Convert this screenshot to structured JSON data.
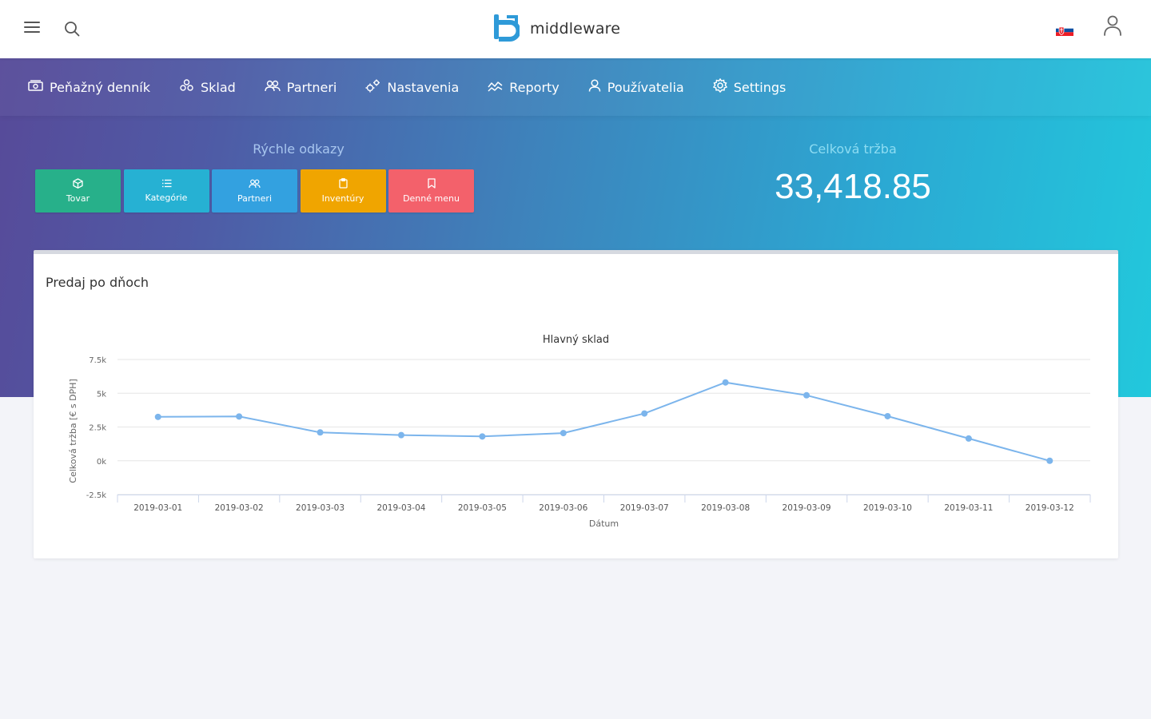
{
  "header": {
    "brand_name": "middleware",
    "menu_icon": "hamburger-icon",
    "search_icon": "search-icon",
    "flag_icon": "slovakia-flag-icon",
    "user_icon": "user-icon"
  },
  "nav": {
    "items": [
      {
        "label": "Peňažný denník",
        "icon": "cash-icon"
      },
      {
        "label": "Sklad",
        "icon": "boxes-icon"
      },
      {
        "label": "Partneri",
        "icon": "users-icon"
      },
      {
        "label": "Nastavenia",
        "icon": "gears-icon"
      },
      {
        "label": "Reporty",
        "icon": "chart-icon"
      },
      {
        "label": "Používatelia",
        "icon": "user-icon"
      },
      {
        "label": "Settings",
        "icon": "gear-icon"
      }
    ]
  },
  "quick_links": {
    "title": "Rýchle odkazy",
    "buttons": [
      {
        "label": "Tovar",
        "icon": "cube-icon",
        "color": "#27b08a"
      },
      {
        "label": "Kategórie",
        "icon": "list-icon",
        "color": "#26b1d3"
      },
      {
        "label": "Partneri",
        "icon": "users-icon",
        "color": "#33a1e0"
      },
      {
        "label": "Inventúry",
        "icon": "clipboard-icon",
        "color": "#f0a500"
      },
      {
        "label": "Denné menu",
        "icon": "bookmark-icon",
        "color": "#f3616b"
      }
    ]
  },
  "total": {
    "title": "Celková tržba",
    "value": "33,418.85"
  },
  "card": {
    "title": "Predaj po dňoch"
  },
  "chart_data": {
    "type": "line",
    "title": "Hlavný sklad",
    "xlabel": "Dátum",
    "ylabel": "Celková tržba [€ s DPH]",
    "ylim": [
      -2500,
      7500
    ],
    "yticks": [
      -2500,
      0,
      2500,
      5000,
      7500
    ],
    "ytick_labels": [
      "-2.5k",
      "0k",
      "2.5k",
      "5k",
      "7.5k"
    ],
    "grid": true,
    "color": "#7cb5ec",
    "categories": [
      "2019-03-01",
      "2019-03-02",
      "2019-03-03",
      "2019-03-04",
      "2019-03-05",
      "2019-03-06",
      "2019-03-07",
      "2019-03-08",
      "2019-03-09",
      "2019-03-10",
      "2019-03-11",
      "2019-03-12"
    ],
    "values": [
      3250,
      3280,
      2100,
      1900,
      1800,
      2050,
      3500,
      5800,
      4850,
      3300,
      1650,
      0
    ]
  }
}
